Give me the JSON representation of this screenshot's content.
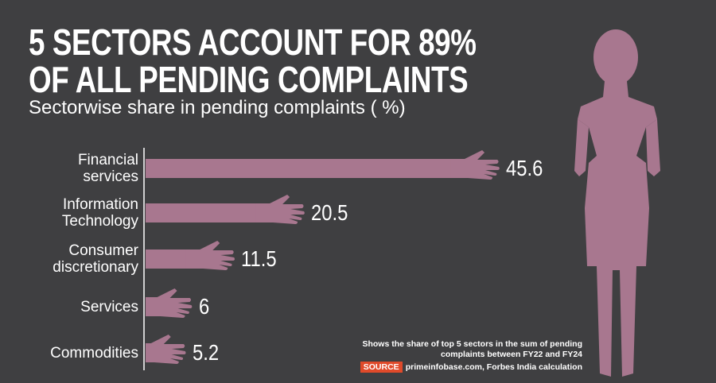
{
  "chart_data": {
    "type": "bar",
    "title": [
      "5 SECTORS ACCOUNT FOR 89%",
      "OF ALL PENDING COMPLAINTS"
    ],
    "subtitle": "Sectorwise share in pending complaints ( %)",
    "categories": [
      "Financial services",
      "Information Technology",
      "Consumer discretionary",
      "Services",
      "Commodities"
    ],
    "values": [
      45.6,
      20.5,
      11.5,
      6,
      5.2
    ],
    "color": "#a8778f",
    "note": "Shows the share of top 5 sectors in the sum of pending complaints between FY22 and FY24",
    "source_label": "SOURCE",
    "source": "primeinfobase.com, Forbes India calculation"
  }
}
